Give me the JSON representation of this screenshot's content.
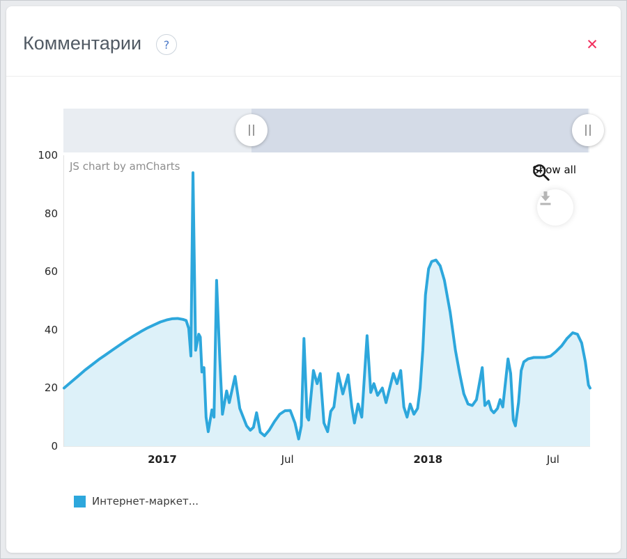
{
  "header": {
    "title": "Комментарии",
    "help_label": "?",
    "close_label": "✕"
  },
  "watermark": "JS chart by amCharts",
  "toolbar": {
    "show_all_label": "Show all"
  },
  "scrollbar": {
    "track_color": "#e9edf2",
    "selected_color": "#d4dbe7",
    "selected_from_pct": 35.8,
    "selected_to_pct": 99.7
  },
  "chart_data": {
    "type": "area",
    "title": "",
    "xlabel": "",
    "ylabel": "",
    "ylim": [
      0,
      100
    ],
    "yticks": [
      100,
      80,
      60,
      40,
      20,
      0
    ],
    "xticks": [
      {
        "label": "2017",
        "pct": 18.8,
        "bold": true
      },
      {
        "label": "Jul",
        "pct": 42.6,
        "bold": false
      },
      {
        "label": "2018",
        "pct": 69.3,
        "bold": true
      },
      {
        "label": "Jul",
        "pct": 93.1,
        "bold": false
      }
    ],
    "x_range_note": "x given as percent of visible axis (≈Aug 2016 – Aug 2018)",
    "series": [
      {
        "name": "Интернет-маркет...",
        "line_color": "#2da7dc",
        "fill_color": "rgba(45,167,220,0.16)",
        "points": [
          [
            0,
            20
          ],
          [
            1.3,
            22
          ],
          [
            2.6,
            24
          ],
          [
            4,
            26.2
          ],
          [
            5.3,
            28
          ],
          [
            6.6,
            29.8
          ],
          [
            7.9,
            31.4
          ],
          [
            9.3,
            33.2
          ],
          [
            10.6,
            34.8
          ],
          [
            11.9,
            36.4
          ],
          [
            13.2,
            37.9
          ],
          [
            14.6,
            39.4
          ],
          [
            15.9,
            40.7
          ],
          [
            17.2,
            41.8
          ],
          [
            18.3,
            42.7
          ],
          [
            19.5,
            43.4
          ],
          [
            20.5,
            43.8
          ],
          [
            21.6,
            43.9
          ],
          [
            22.6,
            43.6
          ],
          [
            23.2,
            43.2
          ],
          [
            23.7,
            40.5
          ],
          [
            24.1,
            31
          ],
          [
            24.5,
            94
          ],
          [
            25,
            33
          ],
          [
            25.6,
            38.5
          ],
          [
            25.9,
            37.5
          ],
          [
            26.2,
            25.5
          ],
          [
            26.6,
            27
          ],
          [
            27,
            10
          ],
          [
            27.4,
            5
          ],
          [
            28.1,
            12.5
          ],
          [
            28.5,
            10
          ],
          [
            29,
            57
          ],
          [
            29.6,
            30
          ],
          [
            30.1,
            11
          ],
          [
            30.9,
            19
          ],
          [
            31.4,
            15
          ],
          [
            32.5,
            24
          ],
          [
            33.4,
            13
          ],
          [
            34.7,
            7
          ],
          [
            35.4,
            5.5
          ],
          [
            36,
            6.5
          ],
          [
            36.6,
            11.5
          ],
          [
            37.3,
            4.8
          ],
          [
            38.1,
            3.6
          ],
          [
            39,
            5.5
          ],
          [
            40,
            8.5
          ],
          [
            41,
            11
          ],
          [
            42,
            12.2
          ],
          [
            43,
            12.3
          ],
          [
            43.9,
            8
          ],
          [
            44.6,
            2.5
          ],
          [
            45.1,
            7
          ],
          [
            45.6,
            37
          ],
          [
            46.2,
            10
          ],
          [
            46.5,
            9
          ],
          [
            47.4,
            26
          ],
          [
            48.1,
            21.5
          ],
          [
            48.7,
            25
          ],
          [
            49.4,
            8
          ],
          [
            50.1,
            5
          ],
          [
            50.7,
            12
          ],
          [
            51.3,
            13.5
          ],
          [
            52.1,
            25
          ],
          [
            53,
            18
          ],
          [
            54,
            24.5
          ],
          [
            54.7,
            13.5
          ],
          [
            55.2,
            8
          ],
          [
            55.9,
            14.5
          ],
          [
            56.6,
            10
          ],
          [
            57.6,
            38
          ],
          [
            58.3,
            18.5
          ],
          [
            58.9,
            21.5
          ],
          [
            59.6,
            17.5
          ],
          [
            60.5,
            20
          ],
          [
            61.2,
            15
          ],
          [
            62.6,
            25
          ],
          [
            63.3,
            21.5
          ],
          [
            64,
            26
          ],
          [
            64.6,
            13.5
          ],
          [
            65.2,
            10
          ],
          [
            65.8,
            14.5
          ],
          [
            66.5,
            11
          ],
          [
            67.2,
            13
          ],
          [
            67.7,
            20
          ],
          [
            68.2,
            33
          ],
          [
            68.7,
            52
          ],
          [
            69.3,
            61
          ],
          [
            69.9,
            63.5
          ],
          [
            70.7,
            64
          ],
          [
            71.5,
            62
          ],
          [
            72.3,
            57
          ],
          [
            73.4,
            46
          ],
          [
            74.4,
            33
          ],
          [
            75.2,
            25
          ],
          [
            76,
            18
          ],
          [
            76.8,
            14.5
          ],
          [
            77.6,
            14
          ],
          [
            78.4,
            16
          ],
          [
            79.5,
            27
          ],
          [
            80,
            14
          ],
          [
            80.7,
            15.5
          ],
          [
            81.2,
            12.5
          ],
          [
            81.7,
            11.5
          ],
          [
            82.4,
            13
          ],
          [
            82.9,
            16
          ],
          [
            83.4,
            13.5
          ],
          [
            84.4,
            30
          ],
          [
            84.9,
            25
          ],
          [
            85.4,
            9
          ],
          [
            85.8,
            7
          ],
          [
            86.4,
            15
          ],
          [
            86.9,
            26
          ],
          [
            87.4,
            29
          ],
          [
            88.2,
            30
          ],
          [
            89.3,
            30.5
          ],
          [
            90.3,
            30.5
          ],
          [
            91.4,
            30.5
          ],
          [
            92.5,
            31
          ],
          [
            93.5,
            32.5
          ],
          [
            94.6,
            34.5
          ],
          [
            95.6,
            37
          ],
          [
            96.7,
            39
          ],
          [
            97.6,
            38.5
          ],
          [
            98.4,
            35.5
          ],
          [
            99.1,
            29
          ],
          [
            99.7,
            21
          ],
          [
            100,
            20
          ]
        ]
      }
    ],
    "legend": [
      {
        "label": "Интернет-маркет...",
        "color": "#2da7dc"
      }
    ]
  }
}
